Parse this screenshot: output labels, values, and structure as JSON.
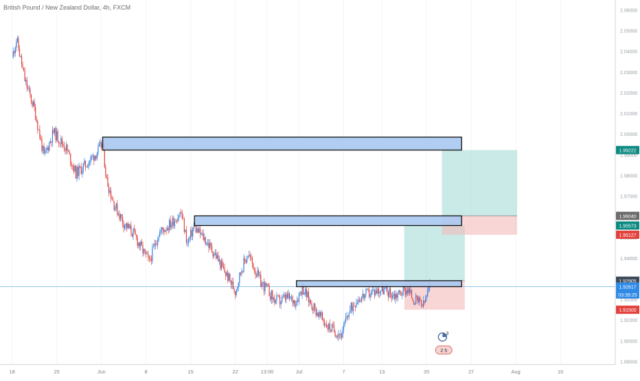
{
  "chart_data": {
    "type": "candlestick",
    "title": "British Pound / New Zealand Dollar, 4h, FXCM",
    "price_axis": {
      "ticks": [
        "2.06000",
        "2.05000",
        "2.04000",
        "2.03000",
        "2.02000",
        "2.01000",
        "2.00000",
        "1.99000",
        "1.98000",
        "1.97000",
        "1.96000",
        "1.95000",
        "1.94000",
        "1.93000",
        "1.92000",
        "1.91000",
        "1.90000",
        "1.89000"
      ],
      "range": [
        1.8885,
        2.0648
      ]
    },
    "time_axis": {
      "labels": [
        "18",
        "25",
        "Jun",
        "8",
        "15",
        "22",
        "13:00",
        "Jul",
        "7",
        "13",
        "20",
        "27",
        "Aug",
        "10"
      ],
      "positions_days": [
        0,
        7,
        14,
        21,
        28,
        35,
        40,
        45,
        52,
        58,
        65,
        72,
        79,
        86
      ],
      "range_days": [
        -1.9,
        94.6
      ]
    },
    "price_path": [
      [
        0,
        2.037
      ],
      [
        0.7,
        2.046
      ],
      [
        2,
        2.026
      ],
      [
        3.5,
        2.012
      ],
      [
        5,
        1.989
      ],
      [
        6.5,
        2.001
      ],
      [
        8.5,
        1.993
      ],
      [
        10,
        1.981
      ],
      [
        11.5,
        1.985
      ],
      [
        13,
        1.99
      ],
      [
        14.2,
        1.995
      ],
      [
        14.8,
        1.978
      ],
      [
        16,
        1.966
      ],
      [
        17.5,
        1.957
      ],
      [
        19,
        1.952
      ],
      [
        21.5,
        1.938
      ],
      [
        23,
        1.952
      ],
      [
        25,
        1.957
      ],
      [
        26.5,
        1.962
      ],
      [
        27.5,
        1.947
      ],
      [
        28.5,
        1.955
      ],
      [
        30,
        1.95
      ],
      [
        32,
        1.941
      ],
      [
        33,
        1.935
      ],
      [
        34,
        1.93
      ],
      [
        35,
        1.924
      ],
      [
        36,
        1.935
      ],
      [
        37,
        1.942
      ],
      [
        38,
        1.935
      ],
      [
        39,
        1.928
      ],
      [
        40,
        1.925
      ],
      [
        41,
        1.92
      ],
      [
        42,
        1.919
      ],
      [
        43,
        1.921
      ],
      [
        44.5,
        1.919
      ],
      [
        45.5,
        1.926
      ],
      [
        46.5,
        1.92
      ],
      [
        48,
        1.913
      ],
      [
        49.5,
        1.907
      ],
      [
        51,
        1.904
      ],
      [
        51.8,
        1.903
      ],
      [
        52.5,
        1.912
      ],
      [
        54,
        1.92
      ],
      [
        56,
        1.923
      ],
      [
        58,
        1.925
      ],
      [
        60,
        1.922
      ],
      [
        62,
        1.925
      ],
      [
        63,
        1.92
      ],
      [
        64.5,
        1.917
      ],
      [
        65.5,
        1.926
      ]
    ],
    "horizontal_line": 1.92617,
    "zones": [
      {
        "name": "resistance-zone-upper",
        "x1": 14.2,
        "x2": 70.5,
        "y_top": 1.9985,
        "y_bottom": 1.99222
      },
      {
        "name": "resistance-zone-middle",
        "x1": 28.6,
        "x2": 70.5,
        "y_top": 1.9604,
        "y_bottom": 1.95573
      },
      {
        "name": "resistance-zone-lower",
        "x1": 44.6,
        "x2": 70.5,
        "y_top": 1.92905,
        "y_bottom": 1.92617
      }
    ],
    "positions": [
      {
        "name": "long-position-lower",
        "x1": 61.5,
        "x2": 71.0,
        "entry": 1.92905,
        "target": 1.95573,
        "stop": 1.915
      },
      {
        "name": "long-position-upper",
        "x1": 67.4,
        "x2": 79.2,
        "entry": 1.9604,
        "target": 1.99222,
        "stop": 1.95127
      }
    ],
    "price_labels": [
      {
        "text": "1.99222",
        "value": 1.99222,
        "color": "#0c8a82"
      },
      {
        "text": "1.96040",
        "value": 1.9604,
        "color": "#6b6b6b"
      },
      {
        "text": "1.95573",
        "value": 1.95573,
        "color": "#0c8a82"
      },
      {
        "text": "1.95127",
        "value": 1.95127,
        "color": "#e2413c"
      },
      {
        "text": "1.92905",
        "value": 1.92905,
        "color": "#3e4b5a"
      },
      {
        "text": "1.92617",
        "value": 1.92617,
        "color": "#2e8ae6"
      },
      {
        "text": "03:39:25",
        "value": 1.9224,
        "color": "#2e8ae6"
      },
      {
        "text": "1.91500",
        "value": 1.915,
        "color": "#e2413c"
      }
    ],
    "events": [
      {
        "icon": "calendar-event-icon",
        "day": 67.5,
        "label": "3",
        "value": 1.9018
      },
      {
        "icon": "dividend-marker-icon",
        "day": 67.7,
        "label": "2 5",
        "value": 1.8955
      }
    ]
  }
}
